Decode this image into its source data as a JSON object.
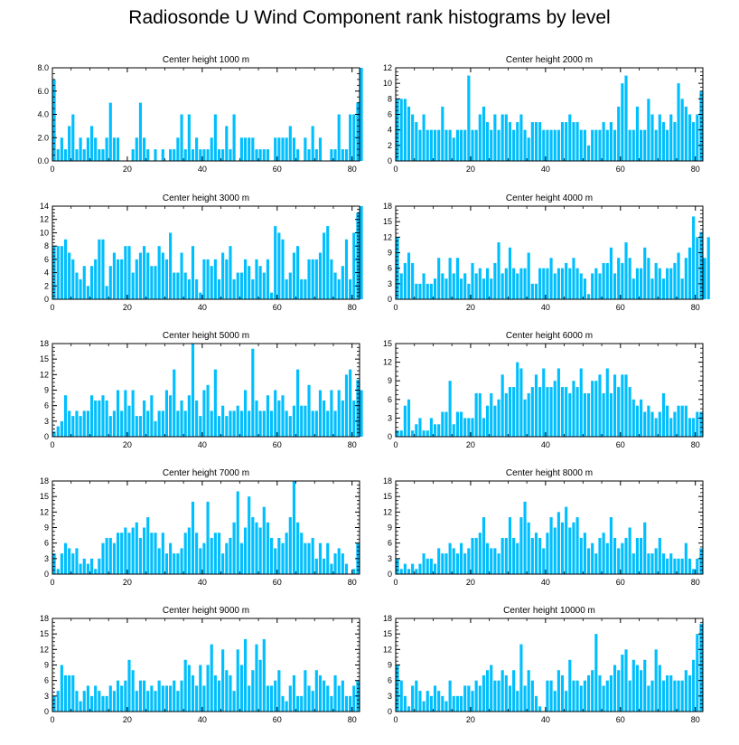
{
  "title": "Radiosonde U Wind Component rank histograms by level",
  "colors": {
    "bar": "#00bfff",
    "axis": "#000000",
    "background": "#ffffff"
  },
  "chart_data": [
    {
      "type": "bar",
      "title": "Center height 1000 m",
      "xlim": [
        0,
        82
      ],
      "ylim": [
        0,
        8
      ],
      "xticks": [
        "0",
        "20",
        "40",
        "60",
        "80"
      ],
      "yticks": [
        "0.0",
        "2.0",
        "4.0",
        "6.0",
        "8.0"
      ],
      "values": [
        7,
        1,
        2,
        1,
        3,
        4,
        1,
        2,
        1,
        2,
        3,
        2,
        1,
        1,
        2,
        5,
        2,
        2,
        0,
        0,
        0,
        1,
        2,
        5,
        2,
        1,
        0,
        1,
        0,
        1,
        0,
        1,
        1,
        2,
        4,
        1,
        4,
        1,
        2,
        1,
        1,
        1,
        2,
        4,
        1,
        1,
        3,
        1,
        4,
        0,
        2,
        2,
        2,
        2,
        1,
        1,
        1,
        1,
        0,
        2,
        2,
        2,
        2,
        3,
        2,
        1,
        0,
        2,
        1,
        3,
        1,
        2,
        0,
        0,
        1,
        1,
        4,
        1,
        1,
        4,
        4,
        5,
        8
      ]
    },
    {
      "type": "bar",
      "title": "Center height 2000 m",
      "xlim": [
        0,
        82
      ],
      "ylim": [
        0,
        12
      ],
      "xticks": [
        "0",
        "20",
        "40",
        "60",
        "80"
      ],
      "yticks": [
        "0",
        "2",
        "4",
        "6",
        "8",
        "10",
        "12"
      ],
      "values": [
        8,
        8,
        8,
        7,
        6,
        5,
        4,
        6,
        4,
        4,
        4,
        4,
        7,
        4,
        4,
        3,
        4,
        4,
        4,
        11,
        4,
        4,
        6,
        7,
        5,
        4,
        6,
        4,
        6,
        6,
        5,
        4,
        5,
        6,
        4,
        3,
        5,
        5,
        5,
        4,
        4,
        4,
        4,
        4,
        5,
        5,
        6,
        5,
        5,
        4,
        4,
        2,
        4,
        4,
        4,
        5,
        4,
        5,
        4,
        7,
        10,
        11,
        4,
        4,
        7,
        4,
        4,
        8,
        6,
        4,
        6,
        5,
        4,
        6,
        5,
        10,
        8,
        7,
        6,
        5,
        6,
        9
      ]
    },
    {
      "type": "bar",
      "title": "Center height 3000 m",
      "xlim": [
        0,
        82
      ],
      "ylim": [
        0,
        14
      ],
      "xticks": [
        "0",
        "20",
        "40",
        "60",
        "80"
      ],
      "yticks": [
        "0",
        "2",
        "4",
        "6",
        "8",
        "10",
        "12",
        "14"
      ],
      "values": [
        8,
        8,
        8,
        9,
        7,
        6,
        4,
        3,
        5,
        2,
        5,
        6,
        9,
        9,
        2,
        5,
        7,
        6,
        6,
        8,
        8,
        4,
        6,
        7,
        8,
        7,
        5,
        5,
        8,
        7,
        6,
        10,
        4,
        4,
        7,
        4,
        3,
        8,
        3,
        1,
        6,
        6,
        5,
        6,
        3,
        7,
        6,
        8,
        3,
        4,
        4,
        6,
        5,
        3,
        6,
        5,
        4,
        6,
        1,
        11,
        10,
        9,
        3,
        4,
        7,
        8,
        3,
        3,
        6,
        6,
        6,
        7,
        10,
        11,
        6,
        4,
        3,
        5,
        9,
        3,
        10,
        13,
        14
      ]
    },
    {
      "type": "bar",
      "title": "Center height 4000 m",
      "xlim": [
        0,
        82
      ],
      "ylim": [
        0,
        18
      ],
      "xticks": [
        "0",
        "20",
        "40",
        "60",
        "80"
      ],
      "yticks": [
        "0",
        "3",
        "6",
        "9",
        "12",
        "15",
        "18"
      ],
      "values": [
        12,
        5,
        7,
        9,
        7,
        3,
        3,
        5,
        3,
        3,
        4,
        8,
        5,
        4,
        8,
        5,
        8,
        4,
        5,
        3,
        7,
        5,
        6,
        4,
        6,
        4,
        7,
        11,
        5,
        6,
        10,
        6,
        5,
        6,
        6,
        9,
        3,
        3,
        6,
        6,
        6,
        8,
        5,
        6,
        6,
        7,
        6,
        8,
        6,
        5,
        4,
        1,
        5,
        6,
        5,
        7,
        7,
        10,
        5,
        8,
        7,
        11,
        8,
        4,
        6,
        6,
        10,
        8,
        4,
        7,
        6,
        4,
        6,
        6,
        7,
        9,
        4,
        8,
        10,
        16,
        12,
        13,
        8,
        12
      ]
    },
    {
      "type": "bar",
      "title": "Center height 5000 m",
      "xlim": [
        0,
        82
      ],
      "ylim": [
        0,
        18
      ],
      "xticks": [
        "0",
        "20",
        "40",
        "60",
        "80"
      ],
      "yticks": [
        "0",
        "3",
        "6",
        "9",
        "12",
        "15",
        "18"
      ],
      "values": [
        1,
        2,
        3,
        8,
        5,
        4,
        5,
        4,
        5,
        5,
        8,
        7,
        7,
        8,
        7,
        4,
        5,
        9,
        5,
        9,
        6,
        9,
        4,
        4,
        7,
        5,
        8,
        3,
        5,
        5,
        9,
        8,
        13,
        5,
        7,
        5,
        8,
        18,
        7,
        4,
        9,
        10,
        5,
        13,
        4,
        6,
        4,
        5,
        5,
        6,
        5,
        9,
        5,
        17,
        7,
        5,
        5,
        8,
        5,
        9,
        7,
        8,
        5,
        4,
        6,
        13,
        6,
        6,
        10,
        5,
        5,
        9,
        7,
        5,
        9,
        5,
        9,
        7,
        12,
        13,
        7,
        11,
        9
      ]
    },
    {
      "type": "bar",
      "title": "Center height 6000 m",
      "xlim": [
        0,
        82
      ],
      "ylim": [
        0,
        15
      ],
      "xticks": [
        "0",
        "20",
        "40",
        "60",
        "80"
      ],
      "yticks": [
        "0",
        "3",
        "6",
        "9",
        "12",
        "15"
      ],
      "values": [
        1,
        1,
        5,
        6,
        1,
        2,
        3,
        1,
        1,
        3,
        2,
        2,
        4,
        4,
        9,
        2,
        4,
        4,
        3,
        3,
        3,
        7,
        7,
        3,
        5,
        7,
        5,
        6,
        10,
        7,
        8,
        8,
        12,
        11,
        6,
        7,
        8,
        10,
        8,
        11,
        8,
        8,
        9,
        11,
        8,
        8,
        7,
        9,
        8,
        11,
        7,
        7,
        9,
        9,
        10,
        7,
        11,
        7,
        10,
        8,
        10,
        10,
        8,
        6,
        5,
        6,
        4,
        5,
        4,
        3,
        4,
        7,
        5,
        3,
        4,
        5,
        5,
        5,
        3,
        3,
        4,
        4
      ]
    },
    {
      "type": "bar",
      "title": "Center height 7000 m",
      "xlim": [
        0,
        82
      ],
      "ylim": [
        0,
        18
      ],
      "xticks": [
        "0",
        "20",
        "40",
        "60",
        "80"
      ],
      "yticks": [
        "0",
        "3",
        "6",
        "9",
        "12",
        "15",
        "18"
      ],
      "values": [
        4,
        1,
        4,
        6,
        5,
        4,
        5,
        2,
        3,
        2,
        3,
        1,
        3,
        6,
        7,
        7,
        6,
        8,
        8,
        9,
        8,
        9,
        10,
        7,
        9,
        11,
        8,
        8,
        5,
        8,
        4,
        6,
        4,
        4,
        5,
        8,
        9,
        14,
        8,
        5,
        6,
        14,
        7,
        8,
        8,
        4,
        6,
        7,
        10,
        16,
        6,
        9,
        15,
        11,
        10,
        9,
        13,
        10,
        7,
        5,
        7,
        6,
        8,
        11,
        18,
        10,
        8,
        6,
        6,
        7,
        3,
        6,
        3,
        6,
        2,
        4,
        5,
        4,
        2,
        0,
        1,
        6
      ]
    },
    {
      "type": "bar",
      "title": "Center height 8000 m",
      "xlim": [
        0,
        82
      ],
      "ylim": [
        0,
        18
      ],
      "xticks": [
        "0",
        "20",
        "40",
        "60",
        "80"
      ],
      "yticks": [
        "0",
        "3",
        "6",
        "9",
        "12",
        "15",
        "18"
      ],
      "values": [
        3,
        1,
        2,
        1,
        2,
        1,
        2,
        4,
        3,
        3,
        2,
        5,
        4,
        4,
        6,
        5,
        4,
        6,
        4,
        5,
        7,
        7,
        8,
        11,
        6,
        5,
        5,
        4,
        7,
        7,
        11,
        7,
        6,
        11,
        14,
        10,
        7,
        8,
        7,
        5,
        8,
        11,
        9,
        12,
        10,
        13,
        9,
        10,
        11,
        7,
        8,
        5,
        6,
        4,
        7,
        8,
        6,
        11,
        7,
        5,
        6,
        7,
        9,
        4,
        7,
        7,
        10,
        4,
        4,
        5,
        7,
        4,
        3,
        4,
        3,
        3,
        3,
        6,
        3,
        1,
        3,
        5
      ]
    },
    {
      "type": "bar",
      "title": "Center height 9000 m",
      "xlim": [
        0,
        82
      ],
      "ylim": [
        0,
        18
      ],
      "xticks": [
        "0",
        "20",
        "40",
        "60",
        "80"
      ],
      "yticks": [
        "0",
        "3",
        "6",
        "9",
        "12",
        "15",
        "18"
      ],
      "values": [
        3,
        4,
        9,
        7,
        7,
        7,
        4,
        2,
        4,
        5,
        3,
        5,
        4,
        3,
        3,
        5,
        4,
        6,
        5,
        6,
        10,
        8,
        4,
        6,
        6,
        4,
        5,
        4,
        6,
        5,
        5,
        5,
        6,
        4,
        6,
        10,
        9,
        7,
        5,
        9,
        5,
        9,
        13,
        7,
        6,
        12,
        8,
        7,
        4,
        12,
        9,
        14,
        5,
        8,
        13,
        10,
        14,
        5,
        5,
        6,
        8,
        3,
        2,
        5,
        7,
        3,
        3,
        8,
        5,
        4,
        8,
        7,
        6,
        5,
        3,
        7,
        5,
        6,
        3,
        3,
        5,
        6
      ]
    },
    {
      "type": "bar",
      "title": "Center height 10000 m",
      "xlim": [
        0,
        82
      ],
      "ylim": [
        0,
        18
      ],
      "xticks": [
        "0",
        "20",
        "40",
        "60",
        "80"
      ],
      "yticks": [
        "0",
        "3",
        "6",
        "9",
        "12",
        "15",
        "18"
      ],
      "values": [
        9,
        6,
        3,
        1,
        5,
        6,
        4,
        2,
        4,
        3,
        5,
        4,
        3,
        2,
        6,
        3,
        3,
        3,
        5,
        5,
        4,
        6,
        5,
        7,
        8,
        9,
        6,
        6,
        8,
        7,
        5,
        8,
        4,
        13,
        5,
        8,
        6,
        3,
        1,
        0,
        6,
        6,
        4,
        8,
        7,
        4,
        10,
        6,
        6,
        5,
        6,
        7,
        8,
        15,
        7,
        5,
        6,
        7,
        9,
        8,
        11,
        12,
        6,
        10,
        9,
        8,
        10,
        5,
        6,
        12,
        9,
        6,
        7,
        7,
        6,
        6,
        6,
        8,
        7,
        10,
        15,
        17
      ]
    }
  ]
}
